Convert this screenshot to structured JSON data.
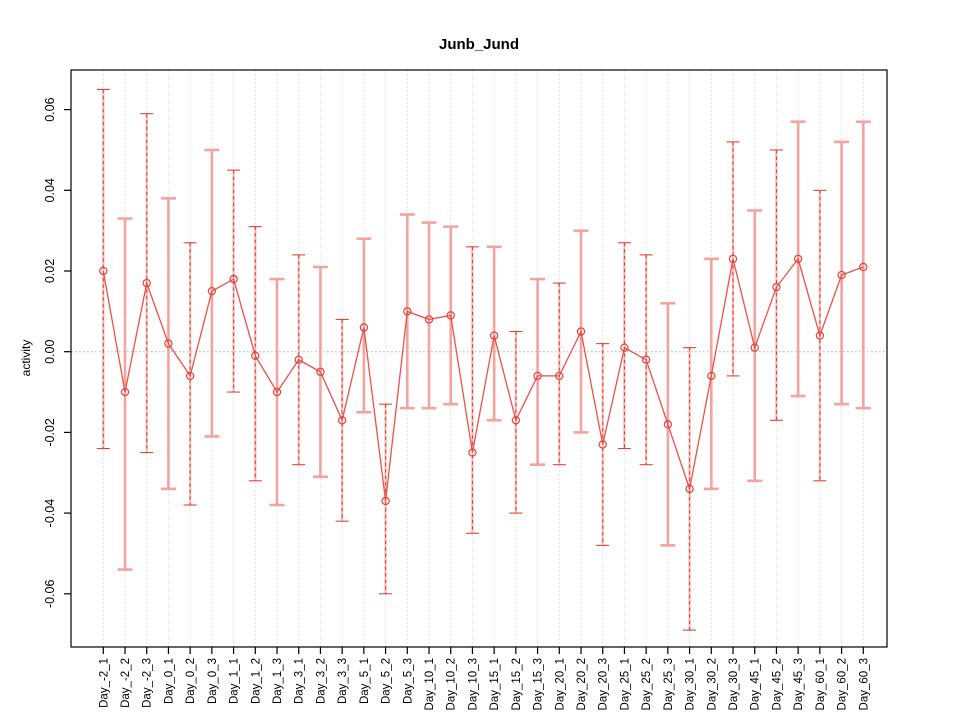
{
  "chart_data": {
    "type": "line",
    "subtype": "points-with-error-bars",
    "title": "Junb_Jund",
    "xlabel": "",
    "ylabel": "activity",
    "ylim": [
      -0.073,
      0.07
    ],
    "grid": "vertical-dotted-plus-zero-line",
    "legend": "none",
    "y_tick_labels": [
      "0.06",
      "0.04",
      "0.02",
      "0.00",
      "-0.02",
      "-0.04",
      "-0.06"
    ],
    "y_tick_values": [
      0.06,
      0.04,
      0.02,
      0.0,
      -0.02,
      -0.04,
      -0.06
    ],
    "categories": [
      "Day_-2_1",
      "Day_-2_2",
      "Day_-2_3",
      "Day_0_1",
      "Day_0_2",
      "Day_0_3",
      "Day_1_1",
      "Day_1_2",
      "Day_1_3",
      "Day_3_1",
      "Day_3_2",
      "Day_3_3",
      "Day_5_1",
      "Day_5_2",
      "Day_5_3",
      "Day_10_1",
      "Day_10_2",
      "Day_10_3",
      "Day_15_1",
      "Day_15_2",
      "Day_15_3",
      "Day_20_1",
      "Day_20_2",
      "Day_20_3",
      "Day_25_1",
      "Day_25_2",
      "Day_25_3",
      "Day_30_1",
      "Day_30_2",
      "Day_30_3",
      "Day_45_1",
      "Day_45_2",
      "Day_45_3",
      "Day_60_1",
      "Day_60_2",
      "Day_60_3"
    ],
    "series": [
      {
        "name": "activity",
        "marker": "open-circle",
        "values": [
          0.02,
          -0.01,
          0.017,
          0.002,
          -0.006,
          0.015,
          0.018,
          -0.001,
          -0.01,
          -0.002,
          -0.005,
          -0.017,
          0.006,
          -0.037,
          0.01,
          0.008,
          0.009,
          -0.025,
          0.004,
          -0.017,
          -0.006,
          -0.006,
          0.005,
          -0.023,
          0.001,
          -0.002,
          -0.018,
          -0.034,
          -0.006,
          0.023,
          0.001,
          0.016,
          0.023,
          0.004,
          0.019,
          0.021
        ],
        "upper": [
          0.065,
          0.033,
          0.059,
          0.038,
          0.027,
          0.05,
          0.045,
          0.031,
          0.018,
          0.024,
          0.021,
          0.008,
          0.028,
          -0.013,
          0.034,
          0.032,
          0.031,
          0.026,
          0.026,
          0.005,
          0.018,
          0.017,
          0.03,
          0.002,
          0.027,
          0.024,
          0.012,
          0.001,
          0.023,
          0.052,
          0.035,
          0.05,
          0.057,
          0.04,
          0.052,
          0.057
        ],
        "lower": [
          -0.024,
          -0.054,
          -0.025,
          -0.034,
          -0.038,
          -0.021,
          -0.01,
          -0.032,
          -0.038,
          -0.028,
          -0.031,
          -0.042,
          -0.015,
          -0.06,
          -0.014,
          -0.014,
          -0.013,
          -0.045,
          -0.017,
          -0.04,
          -0.028,
          -0.028,
          -0.02,
          -0.048,
          -0.024,
          -0.028,
          -0.048,
          -0.069,
          -0.034,
          -0.006,
          -0.032,
          -0.017,
          -0.011,
          -0.032,
          -0.013,
          -0.014
        ],
        "bar_style": [
          "dashed",
          "solid",
          "dashed",
          "solid",
          "dashed",
          "solid",
          "dashed",
          "dashed",
          "solid",
          "dashed",
          "solid",
          "dashed",
          "solid",
          "dashed",
          "solid",
          "solid",
          "solid",
          "dashed",
          "solid",
          "dashed",
          "solid",
          "dashed",
          "solid",
          "dashed",
          "dashed",
          "dashed",
          "solid",
          "dashed",
          "solid",
          "dashed",
          "solid",
          "dashed",
          "solid",
          "dashed",
          "solid",
          "solid"
        ]
      }
    ],
    "colors": {
      "line": "#f05048",
      "marker": "#e0443c",
      "error_bar_solid": "#f4a39e",
      "error_bar_dashed": "#e0443c",
      "error_bar_underlay": "#f8bdb9",
      "zero_line": "#b0b0b0",
      "gridline": "#dcdcdc",
      "axis": "#000000"
    }
  }
}
